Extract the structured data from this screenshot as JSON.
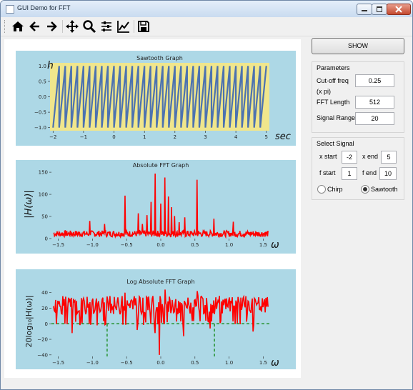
{
  "window": {
    "title": "GUI Demo for FFT"
  },
  "toolbar": {
    "buttons": [
      "home-icon",
      "back-arrow-icon",
      "forward-arrow-icon",
      "pan-icon",
      "zoom-icon",
      "configure-subplots-icon",
      "edit-axis-icon",
      "save-icon"
    ]
  },
  "controls": {
    "show_label": "SHOW",
    "parameters": {
      "title": "Parameters",
      "cutoff_label": "Cut-off freq",
      "cutoff_sub": "(x pi)",
      "cutoff_value": "0.25",
      "fft_length_label": "FFT Length",
      "fft_length_value": "512",
      "signal_range_label": "Signal Range",
      "signal_range_value": "20"
    },
    "select_signal": {
      "title": "Select Signal",
      "x_start_label": "x start",
      "x_start_value": "-2",
      "x_end_label": "x end",
      "x_end_value": "5",
      "f_start_label": "f start",
      "f_start_value": "1",
      "f_end_label": "f end",
      "f_end_value": "10",
      "chirp_label": "Chirp",
      "sawtooth_label": "Sawtooth",
      "selected": "Sawtooth"
    }
  },
  "colors": {
    "panel_bg": "#add8e6",
    "plot1_bg": "#f0e68c",
    "sawtooth": "#4c72b0",
    "fft": "#ff0000",
    "cutoff": "#008000"
  },
  "chart_data": [
    {
      "type": "line",
      "title": "Sawtooth Graph",
      "ylabel": "h",
      "xlabel": "sec",
      "xlim": [
        -2.1,
        5.1
      ],
      "ylim": [
        -1.1,
        1.1
      ],
      "xticks": [
        "−2",
        "−1",
        "0",
        "1",
        "2",
        "3",
        "4",
        "5"
      ],
      "yticks": [
        "1.0",
        "0.5",
        "0.0",
        "−0.5",
        "−1.0"
      ],
      "series": [
        {
          "cycles": 35,
          "x_start": -2,
          "x_end": 5,
          "amplitude": 1
        }
      ]
    },
    {
      "type": "line",
      "title": "Absolute FFT Graph",
      "ylabel": "|H(ω)|",
      "xlabel": "ω",
      "xlim": [
        -1.6,
        1.6
      ],
      "ylim": [
        0,
        155
      ],
      "xticks": [
        "−1.5",
        "−1.0",
        "−0.5",
        "0.0",
        "0.5",
        "1.0",
        "1.5"
      ],
      "yticks": [
        "150",
        "100",
        "50",
        "0"
      ],
      "peaks": [
        {
          "x": -1.04,
          "y": 40
        },
        {
          "x": -0.82,
          "y": 33
        },
        {
          "x": -0.52,
          "y": 97
        },
        {
          "x": -0.33,
          "y": 57
        },
        {
          "x": -0.27,
          "y": 33
        },
        {
          "x": -0.2,
          "y": 53
        },
        {
          "x": -0.14,
          "y": 83
        },
        {
          "x": -0.08,
          "y": 147
        },
        {
          "x": 0.0,
          "y": 79
        },
        {
          "x": 0.06,
          "y": 138
        },
        {
          "x": 0.11,
          "y": 95
        },
        {
          "x": 0.16,
          "y": 71
        },
        {
          "x": 0.2,
          "y": 51
        },
        {
          "x": 0.27,
          "y": 37
        },
        {
          "x": 0.35,
          "y": 48
        },
        {
          "x": 0.53,
          "y": 133
        },
        {
          "x": 0.78,
          "y": 45
        },
        {
          "x": 1.06,
          "y": 38
        }
      ]
    },
    {
      "type": "line",
      "title": "Log Absolute FFT Graph",
      "ylabel": "20log₁₀|H(ω)|",
      "xlabel": "ω",
      "xlim": [
        -1.6,
        1.6
      ],
      "ylim": [
        -42,
        48
      ],
      "xticks": [
        "−1.5",
        "−1.0",
        "−0.5",
        "0.0",
        "0.5",
        "1.0",
        "1.5"
      ],
      "yticks": [
        "40",
        "20",
        "0",
        "−20",
        "−40"
      ],
      "cutoff_x": [
        -0.785,
        0.785
      ],
      "reference_y": 0
    }
  ]
}
